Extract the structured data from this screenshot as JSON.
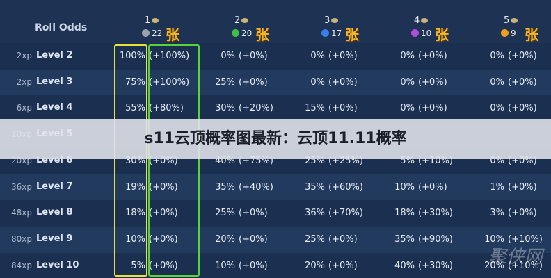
{
  "header": {
    "title": "Roll Odds",
    "tiers": [
      {
        "tier": "1",
        "count": "22",
        "unit": "张"
      },
      {
        "tier": "2",
        "count": "20",
        "unit": "张"
      },
      {
        "tier": "3",
        "count": "17",
        "unit": "张"
      },
      {
        "tier": "4",
        "count": "10",
        "unit": "张"
      },
      {
        "tier": "5",
        "count": "9",
        "unit": "张"
      }
    ]
  },
  "table": {
    "rows": [
      {
        "xp": "2xp",
        "level": "Level 2",
        "cells": [
          [
            "100%",
            "(+100%)"
          ],
          [
            "0%",
            "(+0%)"
          ],
          [
            "0%",
            "(+0%)"
          ],
          [
            "0%",
            "(+0%)"
          ],
          [
            "0%",
            "(+0%)"
          ]
        ]
      },
      {
        "xp": "2xp",
        "level": "Level 3",
        "cells": [
          [
            "75%",
            "(+100%)"
          ],
          [
            "25%",
            "(+0%)"
          ],
          [
            "0%",
            "(+0%)"
          ],
          [
            "0%",
            "(+0%)"
          ],
          [
            "0%",
            "(+0%)"
          ]
        ]
      },
      {
        "xp": "6xp",
        "level": "Level 4",
        "cells": [
          [
            "55%",
            "(+80%)"
          ],
          [
            "30%",
            "(+20%)"
          ],
          [
            "15%",
            "(+0%)"
          ],
          [
            "0%",
            "(+0%)"
          ],
          [
            "0%",
            "(+0%)"
          ]
        ]
      },
      {
        "xp": "10xp",
        "level": "Level 5"
      },
      {
        "xp": "20xp",
        "level": "Level 6",
        "cells": [
          [
            "30%",
            "(+0%)"
          ],
          [
            "40%",
            "(+75%)"
          ],
          [
            "25%",
            "(+25%)"
          ],
          [
            "5%",
            "(+10%)"
          ],
          [
            "0%",
            "(+0%)"
          ]
        ]
      },
      {
        "xp": "36xp",
        "level": "Level 7",
        "cells": [
          [
            "19%",
            "(+0%)"
          ],
          [
            "35%",
            "(+40%)"
          ],
          [
            "35%",
            "(+60%)"
          ],
          [
            "10%",
            "(+0%)"
          ],
          [
            "1%",
            "(+0%)"
          ]
        ]
      },
      {
        "xp": "48xp",
        "level": "Level 8",
        "cells": [
          [
            "18%",
            "(+0%)"
          ],
          [
            "25%",
            "(+0%)"
          ],
          [
            "36%",
            "(+70%)"
          ],
          [
            "18%",
            "(+30%)"
          ],
          [
            "3%",
            "(+0%)"
          ]
        ]
      },
      {
        "xp": "80xp",
        "level": "Level 9",
        "cells": [
          [
            "10%",
            "(+0%)"
          ],
          [
            "20%",
            "(+0%)"
          ],
          [
            "25%",
            "(+0%)"
          ],
          [
            "35%",
            "(+90%)"
          ],
          [
            "10%",
            "(+10%)"
          ]
        ]
      },
      {
        "xp": "84xp",
        "level": "Level 10",
        "cells": [
          [
            "5%",
            "(+0%)"
          ],
          [
            "10%",
            "(+0%)"
          ],
          [
            "20%",
            "(+0%)"
          ],
          [
            "40%",
            "(+30%)"
          ],
          [
            "20%",
            "(+10%)"
          ]
        ]
      }
    ]
  },
  "banner": {
    "text": "s11云顶概率图最新：云顶11.11概率"
  },
  "watermark": {
    "text": "聚侠网"
  }
}
